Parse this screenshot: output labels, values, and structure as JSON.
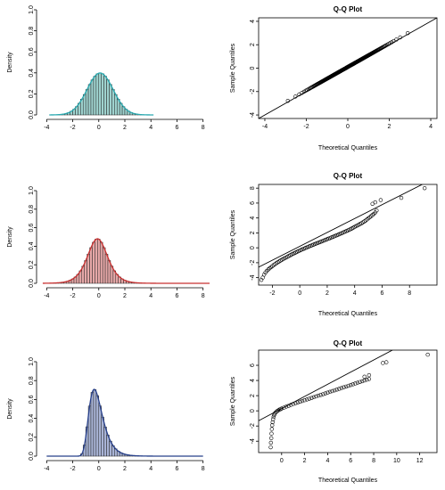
{
  "chart_data": [
    {
      "type": "bar",
      "panel": "hist-1",
      "title": "",
      "xlabel": "",
      "ylabel": "Density",
      "xlim": [
        -4.5,
        8.5
      ],
      "ylim": [
        0,
        1.0
      ],
      "xticks": [
        -4,
        -2,
        0,
        2,
        4,
        6,
        8
      ],
      "yticks": [
        0.0,
        0.2,
        0.4,
        0.6,
        0.8,
        1.0
      ],
      "bin_width": 0.2,
      "bar_fill": "#9fd3cf",
      "curve_color": "#2aa9b0",
      "curve_range": [
        -3.8,
        4.2
      ],
      "distribution": {
        "kind": "normal",
        "mu": 0.1,
        "sigma": 1.0
      },
      "series": []
    },
    {
      "type": "scatter",
      "panel": "qq-1",
      "title": "Q-Q Plot",
      "xlabel": "Theoretical Quantiles",
      "ylabel": "Sample Quantiles",
      "xlim": [
        -4.3,
        4.3
      ],
      "ylim": [
        -4.3,
        4.3
      ],
      "xticks": [
        -4,
        -2,
        0,
        2,
        4
      ],
      "yticks": [
        -4,
        -2,
        0,
        2,
        4
      ],
      "reference_line": {
        "intercept": 0,
        "slope": 1
      },
      "distribution": {
        "kind": "normal",
        "mu": 0.1,
        "sigma": 1.0
      },
      "n_points": 260,
      "series": []
    },
    {
      "type": "bar",
      "panel": "hist-2",
      "title": "",
      "xlabel": "",
      "ylabel": "Density",
      "xlim": [
        -4.5,
        8.5
      ],
      "ylim": [
        0,
        1.0
      ],
      "xticks": [
        -4,
        -2,
        0,
        2,
        4,
        6,
        8
      ],
      "yticks": [
        0.0,
        0.2,
        0.4,
        0.6,
        0.8,
        1.0
      ],
      "bin_width": 0.2,
      "bar_fill": "#e6a8a8",
      "curve_color": "#c83232",
      "curve_range": [
        -4.3,
        8.5
      ],
      "distribution": {
        "kind": "logistic",
        "mu": -0.1,
        "s": 0.52
      },
      "series": []
    },
    {
      "type": "scatter",
      "panel": "qq-2",
      "title": "Q-Q Plot",
      "xlabel": "Theoretical Quantiles",
      "ylabel": "Sample Quantiles",
      "xlim": [
        -3.0,
        10.0
      ],
      "ylim": [
        -5.0,
        8.5
      ],
      "xticks": [
        -2,
        0,
        2,
        4,
        6,
        8
      ],
      "yticks": [
        -4,
        -2,
        0,
        2,
        4,
        6,
        8
      ],
      "reference_line": {
        "intercept": 0.2,
        "slope": 0.93
      },
      "points": [
        [
          -2.8,
          -4.3
        ],
        [
          -2.7,
          -4.0
        ],
        [
          -2.6,
          -3.6
        ],
        [
          -2.5,
          -3.3
        ],
        [
          -2.4,
          -3.1
        ],
        [
          -2.3,
          -2.9
        ],
        [
          -2.2,
          -2.75
        ],
        [
          -2.1,
          -2.6
        ],
        [
          -2.0,
          -2.45
        ],
        [
          -1.9,
          -2.3
        ],
        [
          -1.8,
          -2.18
        ],
        [
          -1.7,
          -2.05
        ],
        [
          -1.6,
          -1.93
        ],
        [
          -1.5,
          -1.82
        ],
        [
          -1.4,
          -1.71
        ],
        [
          -1.3,
          -1.6
        ],
        [
          -1.2,
          -1.5
        ],
        [
          -1.1,
          -1.4
        ],
        [
          -1.0,
          -1.3
        ],
        [
          -0.9,
          -1.2
        ],
        [
          -0.8,
          -1.1
        ],
        [
          -0.7,
          -1.0
        ],
        [
          -0.6,
          -0.9
        ],
        [
          -0.5,
          -0.81
        ],
        [
          -0.4,
          -0.72
        ],
        [
          -0.3,
          -0.63
        ],
        [
          -0.2,
          -0.54
        ],
        [
          -0.1,
          -0.45
        ],
        [
          0.0,
          -0.36
        ],
        [
          0.1,
          -0.28
        ],
        [
          0.2,
          -0.2
        ],
        [
          0.3,
          -0.12
        ],
        [
          0.4,
          -0.04
        ],
        [
          0.5,
          0.04
        ],
        [
          0.6,
          0.12
        ],
        [
          0.7,
          0.2
        ],
        [
          0.8,
          0.27
        ],
        [
          0.9,
          0.35
        ],
        [
          1.0,
          0.42
        ],
        [
          1.1,
          0.5
        ],
        [
          1.2,
          0.57
        ],
        [
          1.3,
          0.64
        ],
        [
          1.4,
          0.72
        ],
        [
          1.5,
          0.79
        ],
        [
          1.6,
          0.86
        ],
        [
          1.7,
          0.94
        ],
        [
          1.8,
          1.01
        ],
        [
          1.9,
          1.08
        ],
        [
          2.0,
          1.16
        ],
        [
          2.1,
          1.23
        ],
        [
          2.2,
          1.3
        ],
        [
          2.3,
          1.38
        ],
        [
          2.4,
          1.45
        ],
        [
          2.5,
          1.53
        ],
        [
          2.6,
          1.6
        ],
        [
          2.7,
          1.68
        ],
        [
          2.8,
          1.76
        ],
        [
          2.9,
          1.84
        ],
        [
          3.0,
          1.92
        ],
        [
          3.1,
          2.0
        ],
        [
          3.2,
          2.08
        ],
        [
          3.3,
          2.16
        ],
        [
          3.4,
          2.25
        ],
        [
          3.5,
          2.33
        ],
        [
          3.6,
          2.42
        ],
        [
          3.7,
          2.5
        ],
        [
          3.8,
          2.6
        ],
        [
          3.9,
          2.7
        ],
        [
          4.0,
          2.8
        ],
        [
          4.1,
          2.9
        ],
        [
          4.2,
          3.0
        ],
        [
          4.3,
          3.1
        ],
        [
          4.4,
          3.2
        ],
        [
          4.5,
          3.3
        ],
        [
          4.6,
          3.42
        ],
        [
          4.7,
          3.54
        ],
        [
          4.8,
          3.66
        ],
        [
          4.9,
          3.8
        ],
        [
          5.0,
          3.95
        ],
        [
          5.1,
          4.1
        ],
        [
          5.2,
          4.25
        ],
        [
          5.3,
          4.4
        ],
        [
          5.4,
          4.55
        ],
        [
          5.5,
          4.75
        ],
        [
          5.6,
          5.0
        ],
        [
          5.3,
          5.9
        ],
        [
          5.5,
          6.1
        ],
        [
          5.9,
          6.4
        ],
        [
          7.4,
          6.7
        ],
        [
          9.1,
          8.0
        ]
      ],
      "series": []
    },
    {
      "type": "bar",
      "panel": "hist-3",
      "title": "",
      "xlabel": "",
      "ylabel": "Density",
      "xlim": [
        -4.5,
        8.5
      ],
      "ylim": [
        0,
        1.0
      ],
      "xticks": [
        -4,
        -2,
        0,
        2,
        4,
        6,
        8
      ],
      "yticks": [
        0.0,
        0.2,
        0.4,
        0.6,
        0.8,
        1.0
      ],
      "bin_width": 0.2,
      "bar_fill": "#a9b4d6",
      "curve_color": "#27408b",
      "curve_range": [
        -4.0,
        8.0
      ],
      "distribution": {
        "kind": "gumbel-like",
        "mu": -0.35,
        "beta": 0.52
      },
      "series": []
    },
    {
      "type": "scatter",
      "panel": "qq-3",
      "title": "Q-Q Plot",
      "xlabel": "Theoretical Quantiles",
      "ylabel": "Sample Quantiles",
      "xlim": [
        -2.0,
        13.5
      ],
      "ylim": [
        -5.5,
        8.0
      ],
      "xticks": [
        0,
        2,
        4,
        6,
        8,
        10,
        12
      ],
      "yticks": [
        -4,
        -2,
        0,
        2,
        4,
        6
      ],
      "reference_line": {
        "intercept": 0.3,
        "slope": 0.8
      },
      "points": [
        [
          -0.95,
          -4.8
        ],
        [
          -0.93,
          -4.2
        ],
        [
          -0.9,
          -3.6
        ],
        [
          -0.88,
          -3.0
        ],
        [
          -0.85,
          -2.4
        ],
        [
          -0.82,
          -1.9
        ],
        [
          -0.78,
          -1.5
        ],
        [
          -0.74,
          -1.1
        ],
        [
          -0.7,
          -0.8
        ],
        [
          -0.65,
          -0.55
        ],
        [
          -0.6,
          -0.35
        ],
        [
          -0.5,
          -0.18
        ],
        [
          -0.4,
          -0.05
        ],
        [
          -0.3,
          0.05
        ],
        [
          -0.2,
          0.15
        ],
        [
          -0.1,
          0.22
        ],
        [
          0.0,
          0.3
        ],
        [
          0.2,
          0.42
        ],
        [
          0.4,
          0.55
        ],
        [
          0.6,
          0.66
        ],
        [
          0.8,
          0.78
        ],
        [
          1.0,
          0.9
        ],
        [
          1.2,
          1.0
        ],
        [
          1.4,
          1.1
        ],
        [
          1.6,
          1.2
        ],
        [
          1.8,
          1.3
        ],
        [
          2.0,
          1.4
        ],
        [
          2.2,
          1.5
        ],
        [
          2.4,
          1.6
        ],
        [
          2.6,
          1.7
        ],
        [
          2.8,
          1.8
        ],
        [
          3.0,
          1.9
        ],
        [
          3.2,
          2.0
        ],
        [
          3.4,
          2.1
        ],
        [
          3.6,
          2.2
        ],
        [
          3.8,
          2.3
        ],
        [
          4.0,
          2.4
        ],
        [
          4.2,
          2.5
        ],
        [
          4.4,
          2.6
        ],
        [
          4.6,
          2.7
        ],
        [
          4.8,
          2.8
        ],
        [
          5.0,
          2.9
        ],
        [
          5.2,
          3.0
        ],
        [
          5.4,
          3.1
        ],
        [
          5.6,
          3.2
        ],
        [
          5.8,
          3.3
        ],
        [
          6.0,
          3.4
        ],
        [
          6.2,
          3.5
        ],
        [
          6.4,
          3.6
        ],
        [
          6.6,
          3.7
        ],
        [
          6.8,
          3.8
        ],
        [
          7.0,
          3.9
        ],
        [
          7.2,
          4.0
        ],
        [
          7.4,
          4.1
        ],
        [
          7.6,
          4.2
        ],
        [
          7.2,
          4.5
        ],
        [
          7.6,
          4.7
        ],
        [
          8.8,
          6.3
        ],
        [
          9.1,
          6.4
        ],
        [
          12.7,
          7.4
        ]
      ],
      "series": []
    }
  ]
}
